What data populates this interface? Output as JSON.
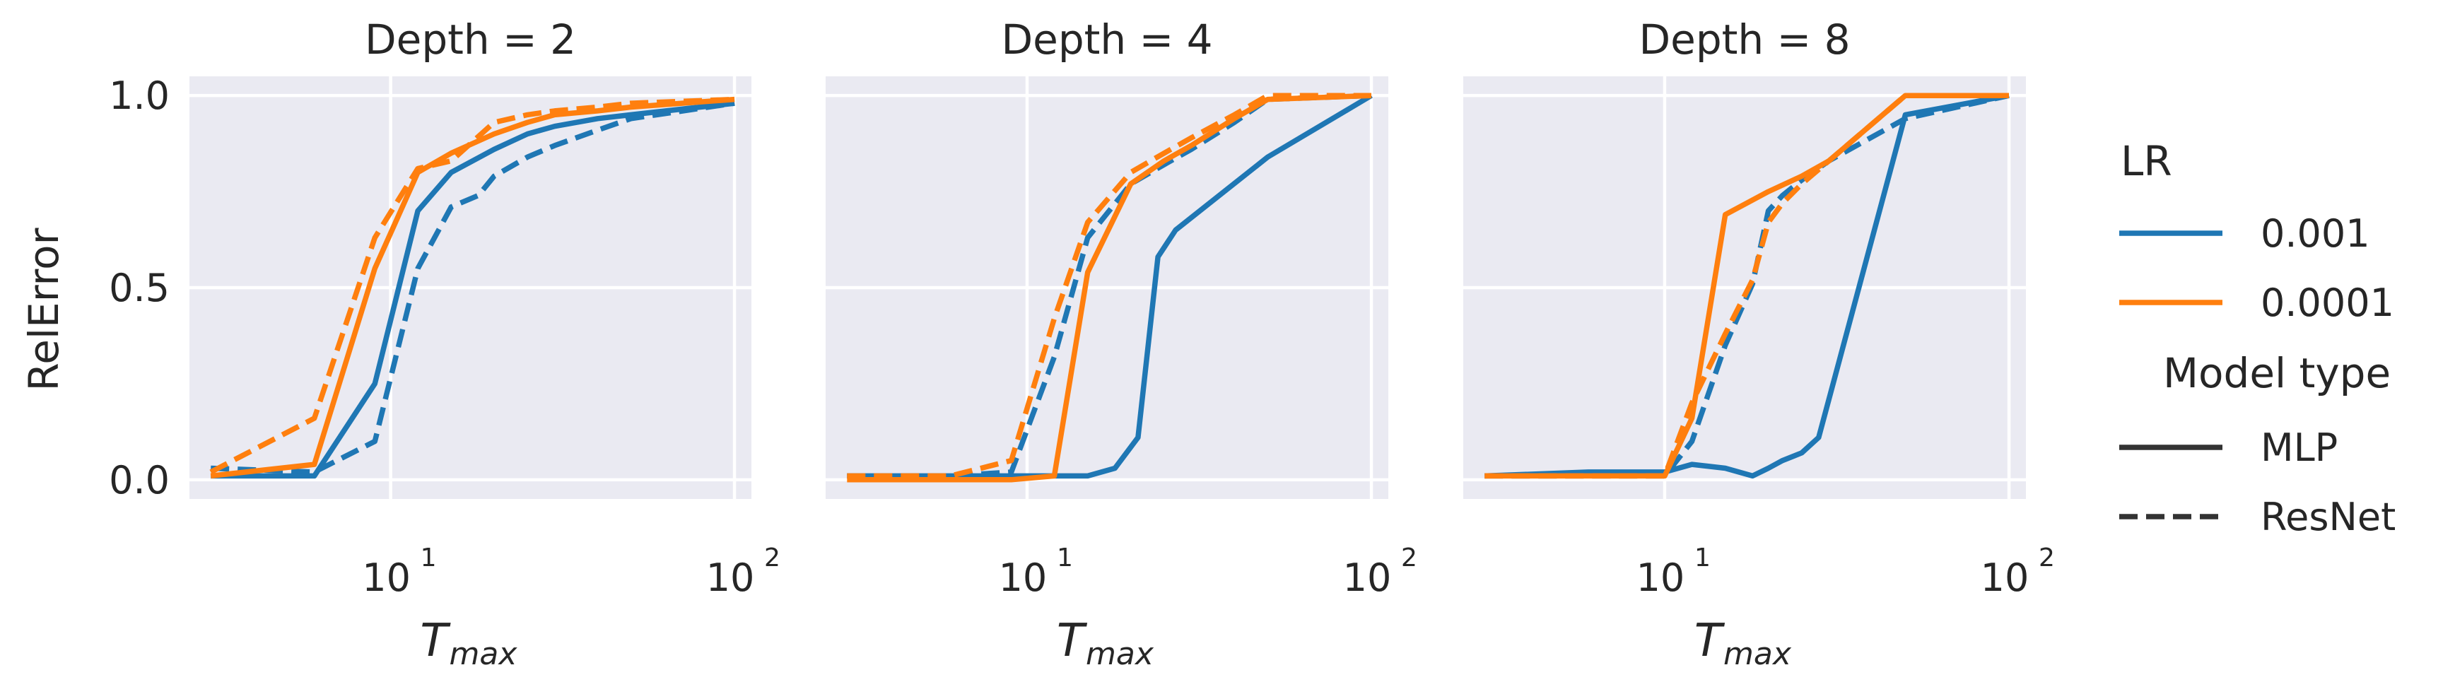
{
  "colors": {
    "lr_0.001": "#1f77b4",
    "lr_0.0001": "#ff7f0e",
    "panel_bg": "#eaeaf2",
    "grid": "#ffffff",
    "text": "#262626"
  },
  "chart_data": [
    {
      "type": "line",
      "title": "Depth = 2",
      "xlabel": "T",
      "xlabel_sub": "max",
      "ylabel": "RelError",
      "xscale": "log",
      "xlim": [
        2.6,
        112
      ],
      "ylim": [
        -0.05,
        1.05
      ],
      "xticks": [
        {
          "base": "10",
          "exp": "1",
          "value": 10
        },
        {
          "base": "10",
          "exp": "2",
          "value": 100
        }
      ],
      "yticks": [
        "0.0",
        "0.5",
        "1.0"
      ],
      "grid": true,
      "series": [
        {
          "lr": "0.001",
          "model": "MLP",
          "x": [
            3,
            6,
            9,
            12,
            15,
            20,
            25,
            30,
            40,
            50,
            100
          ],
          "y": [
            0.01,
            0.01,
            0.25,
            0.7,
            0.8,
            0.86,
            0.9,
            0.92,
            0.94,
            0.95,
            0.98
          ]
        },
        {
          "lr": "0.001",
          "model": "ResNet",
          "x": [
            3,
            6,
            9,
            12,
            15,
            18,
            20,
            25,
            30,
            40,
            50,
            100
          ],
          "y": [
            0.03,
            0.02,
            0.1,
            0.55,
            0.71,
            0.74,
            0.79,
            0.84,
            0.87,
            0.91,
            0.94,
            0.98
          ]
        },
        {
          "lr": "0.0001",
          "model": "MLP",
          "x": [
            3,
            6,
            9,
            12,
            15,
            20,
            25,
            30,
            40,
            50,
            100
          ],
          "y": [
            0.01,
            0.04,
            0.55,
            0.8,
            0.85,
            0.9,
            0.93,
            0.95,
            0.96,
            0.97,
            0.99
          ]
        },
        {
          "lr": "0.0001",
          "model": "ResNet",
          "x": [
            3,
            6,
            9,
            12,
            15,
            20,
            25,
            30,
            40,
            50,
            100
          ],
          "y": [
            0.02,
            0.16,
            0.63,
            0.81,
            0.83,
            0.93,
            0.95,
            0.96,
            0.97,
            0.98,
            0.99
          ]
        }
      ]
    },
    {
      "type": "line",
      "title": "Depth = 4",
      "xlabel": "T",
      "xlabel_sub": "max",
      "xscale": "log",
      "xlim": [
        2.6,
        112
      ],
      "ylim": [
        -0.05,
        1.05
      ],
      "xticks": [
        {
          "base": "10",
          "exp": "1",
          "value": 10
        },
        {
          "base": "10",
          "exp": "2",
          "value": 100
        }
      ],
      "grid": true,
      "series": [
        {
          "lr": "0.001",
          "model": "MLP",
          "x": [
            3,
            6,
            9,
            12,
            15,
            18,
            21,
            24,
            27,
            50,
            100
          ],
          "y": [
            0.01,
            0.01,
            0.01,
            0.01,
            0.01,
            0.03,
            0.11,
            0.58,
            0.65,
            0.84,
            1.0
          ]
        },
        {
          "lr": "0.001",
          "model": "ResNet",
          "x": [
            3,
            6,
            9,
            12,
            15,
            20,
            25,
            30,
            40,
            50,
            100
          ],
          "y": [
            0.01,
            0.01,
            0.02,
            0.32,
            0.63,
            0.77,
            0.82,
            0.86,
            0.93,
            0.99,
            1.0
          ]
        },
        {
          "lr": "0.0001",
          "model": "MLP",
          "x": [
            3,
            6,
            9,
            12,
            15,
            20,
            25,
            30,
            40,
            50,
            100
          ],
          "y": [
            0.0,
            0.0,
            0.0,
            0.01,
            0.54,
            0.77,
            0.83,
            0.87,
            0.94,
            0.99,
            1.0
          ]
        },
        {
          "lr": "0.0001",
          "model": "ResNet",
          "x": [
            3,
            6,
            9,
            12,
            15,
            20,
            25,
            30,
            40,
            50,
            100
          ],
          "y": [
            0.01,
            0.01,
            0.05,
            0.42,
            0.67,
            0.8,
            0.85,
            0.89,
            0.95,
            1.0,
            1.0
          ]
        }
      ]
    },
    {
      "type": "line",
      "title": "Depth = 8",
      "xlabel": "T",
      "xlabel_sub": "max",
      "xscale": "log",
      "xlim": [
        2.6,
        112
      ],
      "ylim": [
        -0.05,
        1.05
      ],
      "xticks": [
        {
          "base": "10",
          "exp": "1",
          "value": 10
        },
        {
          "base": "10",
          "exp": "2",
          "value": 100
        }
      ],
      "grid": true,
      "series": [
        {
          "lr": "0.001",
          "model": "MLP",
          "x": [
            3,
            6,
            10,
            12,
            15,
            18,
            20,
            22,
            25,
            28,
            50,
            100
          ],
          "y": [
            0.01,
            0.02,
            0.02,
            0.04,
            0.03,
            0.01,
            0.03,
            0.05,
            0.07,
            0.11,
            0.95,
            1.0
          ]
        },
        {
          "lr": "0.001",
          "model": "ResNet",
          "x": [
            3,
            6,
            10,
            12,
            15,
            18,
            20,
            22,
            25,
            30,
            50,
            100
          ],
          "y": [
            0.01,
            0.01,
            0.01,
            0.1,
            0.35,
            0.51,
            0.7,
            0.74,
            0.78,
            0.83,
            0.94,
            1.0
          ]
        },
        {
          "lr": "0.0001",
          "model": "MLP",
          "x": [
            3,
            6,
            10,
            12,
            15,
            20,
            25,
            30,
            50,
            100
          ],
          "y": [
            0.01,
            0.01,
            0.01,
            0.16,
            0.69,
            0.75,
            0.79,
            0.83,
            1.0,
            1.0
          ]
        },
        {
          "lr": "0.0001",
          "model": "ResNet",
          "x": [
            3,
            6,
            10,
            12,
            15,
            18,
            20,
            22,
            25,
            30,
            50,
            100
          ],
          "y": [
            0.01,
            0.01,
            0.01,
            0.2,
            0.38,
            0.52,
            0.67,
            0.72,
            0.77,
            0.83,
            1.0,
            1.0
          ]
        }
      ]
    }
  ],
  "legend": {
    "placement": "right",
    "lr_title": "LR",
    "lr_entries": [
      "0.001",
      "0.0001"
    ],
    "model_title": "Model type",
    "model_entries": [
      "MLP",
      "ResNet"
    ]
  }
}
